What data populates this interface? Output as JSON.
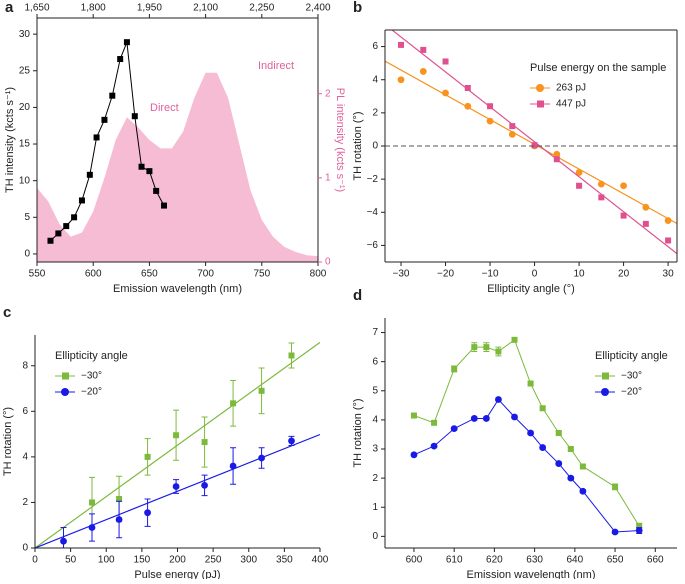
{
  "chart_data": [
    {
      "type": "line",
      "label": "a",
      "xlabel": "Emission wavelength (nm)",
      "x2label": "Excitation wavelength (nm)",
      "ylabel": "TH intensity (kcts s⁻¹)",
      "y2label": "PL intensity (kcts s⁻¹)",
      "xlim": [
        550,
        800
      ],
      "xticks": [
        550,
        600,
        650,
        700,
        750,
        800
      ],
      "x2lim": [
        1650,
        2400
      ],
      "x2ticks": [
        {
          "value": 1650,
          "label": "1,650"
        },
        {
          "value": 1800,
          "label": "1,800"
        },
        {
          "value": 1950,
          "label": "1,950"
        },
        {
          "value": 2100,
          "label": "2,100"
        },
        {
          "value": 2250,
          "label": "2,250"
        },
        {
          "value": 2400,
          "label": "2,400"
        }
      ],
      "ylim": [
        -1.1,
        32.2
      ],
      "yticks": [
        0,
        5,
        10,
        15,
        20,
        25,
        30
      ],
      "y2lim": [
        0,
        2.9
      ],
      "y2ticks": [
        0,
        1,
        2
      ],
      "annotations": [
        "Direct",
        "Indirect"
      ],
      "series": [
        {
          "color": "#f6bcd3",
          "axis": "y2",
          "fill": true,
          "x": [
            550,
            560,
            570,
            580,
            590,
            600,
            610,
            620,
            630,
            640,
            650,
            660,
            670,
            680,
            690,
            700,
            710,
            720,
            730,
            740,
            750,
            760,
            770,
            780,
            790,
            800
          ],
          "values": [
            0.88,
            0.72,
            0.45,
            0.3,
            0.35,
            0.6,
            1.0,
            1.45,
            1.72,
            1.6,
            1.45,
            1.35,
            1.35,
            1.55,
            1.95,
            2.25,
            2.25,
            1.95,
            1.4,
            0.85,
            0.5,
            0.3,
            0.18,
            0.12,
            0.08,
            0.07
          ]
        },
        {
          "color": "#000000",
          "marker": "square",
          "connect": true,
          "x": [
            562,
            569,
            576,
            583,
            590,
            597,
            603,
            610,
            617,
            624,
            630,
            637,
            643,
            650,
            656,
            663
          ],
          "values": [
            1.8,
            2.8,
            3.8,
            5.0,
            7.3,
            10.8,
            15.9,
            18.3,
            21.6,
            26.6,
            28.9,
            18.8,
            11.9,
            11.3,
            8.6,
            6.6
          ]
        }
      ]
    },
    {
      "type": "scatter",
      "label": "b",
      "xlabel": "Ellipticity angle (°)",
      "ylabel": "TH rotation (°)",
      "legend_title": "Pulse energy on the sample",
      "xlim": [
        -33.6,
        32
      ],
      "xticks": [
        {
          "value": -30,
          "label": "−30"
        },
        {
          "value": -20,
          "label": "−20"
        },
        {
          "value": -10,
          "label": "−10"
        },
        0,
        10,
        20,
        30
      ],
      "ylim": [
        -7,
        7
      ],
      "yticks": [
        {
          "value": -6,
          "label": "−6"
        },
        {
          "value": -4,
          "label": "−4"
        },
        {
          "value": -2,
          "label": "−2"
        },
        0,
        2,
        4,
        6
      ],
      "series": [
        {
          "name": "263 pJ",
          "color": "#f7931e",
          "marker": "circle",
          "fit": "linear",
          "x": [
            -30,
            -25,
            -20,
            -15,
            -10,
            -5,
            0,
            5,
            10,
            15,
            20,
            25,
            30
          ],
          "values": [
            4.0,
            4.5,
            3.2,
            2.4,
            1.5,
            0.7,
            0.0,
            -0.5,
            -1.6,
            -2.3,
            -2.4,
            -3.7,
            -4.5
          ]
        },
        {
          "name": "447 pJ",
          "color": "#e0508e",
          "marker": "square",
          "fit": "linear",
          "x": [
            -30,
            -25,
            -20,
            -15,
            -10,
            -5,
            0,
            5,
            10,
            15,
            20,
            25,
            30
          ],
          "values": [
            6.1,
            5.8,
            5.1,
            3.5,
            2.4,
            1.2,
            0.05,
            -0.8,
            -2.4,
            -3.1,
            -4.2,
            -4.7,
            -5.7
          ]
        }
      ]
    },
    {
      "type": "scatter",
      "label": "c",
      "xlabel": "Pulse energy (pJ)",
      "ylabel": "TH rotation (°)",
      "legend_title": "Ellipticity angle",
      "xlim": [
        0,
        400
      ],
      "xticks": [
        0,
        50,
        100,
        150,
        200,
        250,
        300,
        350,
        400
      ],
      "ylim": [
        0,
        9.35
      ],
      "yticks": [
        0,
        2,
        4,
        6,
        8
      ],
      "series": [
        {
          "name": "−30°",
          "color": "#7dba3c",
          "marker": "square",
          "fit": "origin",
          "x": [
            80,
            118,
            158,
            198,
            238,
            278,
            318,
            360
          ],
          "values": [
            2.0,
            2.15,
            4.0,
            4.95,
            4.65,
            6.35,
            6.9,
            8.45
          ],
          "errors": [
            1.1,
            1.0,
            0.8,
            1.1,
            1.1,
            1.0,
            1.0,
            0.55
          ]
        },
        {
          "name": "−20°",
          "color": "#1a1ae6",
          "marker": "circle",
          "fit": "origin",
          "x": [
            40,
            80,
            118,
            158,
            198,
            238,
            278,
            318,
            360
          ],
          "values": [
            0.3,
            0.9,
            1.25,
            1.55,
            2.7,
            2.75,
            3.6,
            3.95,
            4.7
          ],
          "errors": [
            0.6,
            0.6,
            0.8,
            0.6,
            0.3,
            0.45,
            0.8,
            0.45,
            0.2
          ]
        }
      ]
    },
    {
      "type": "line",
      "label": "d",
      "xlabel": "Emission wavelength (nm)",
      "ylabel": "TH rotation (°)",
      "legend_title": "Ellipticity angle",
      "xlim": [
        592.8,
        665.4
      ],
      "xticks": [
        600,
        610,
        620,
        630,
        640,
        650,
        660
      ],
      "ylim": [
        -0.4,
        7.5
      ],
      "yticks": [
        0,
        1,
        2,
        3,
        4,
        5,
        6,
        7
      ],
      "series": [
        {
          "name": "−30°",
          "color": "#7dba3c",
          "marker": "square",
          "connect": true,
          "x": [
            600,
            605,
            610,
            615,
            618,
            621,
            625,
            629,
            632,
            636,
            639,
            642,
            650,
            656
          ],
          "values": [
            4.15,
            3.9,
            5.75,
            6.5,
            6.5,
            6.35,
            6.75,
            5.25,
            4.4,
            3.55,
            3.0,
            2.4,
            1.7,
            0.35
          ],
          "errors": [
            0.05,
            0.05,
            0.1,
            0.15,
            0.15,
            0.15,
            0.05,
            0.05,
            0.05,
            0.05,
            0.05,
            0.05,
            0.1,
            0.1
          ]
        },
        {
          "name": "−20°",
          "color": "#1a1ae6",
          "marker": "circle",
          "connect": true,
          "x": [
            600,
            605,
            610,
            615,
            618,
            621,
            625,
            629,
            632,
            636,
            639,
            642,
            650,
            656
          ],
          "values": [
            2.8,
            3.1,
            3.7,
            4.05,
            4.05,
            4.7,
            4.1,
            3.55,
            3.05,
            2.5,
            2.0,
            1.55,
            0.15,
            0.2
          ],
          "errors": [
            0.05,
            0.05,
            0.05,
            0.05,
            0.05,
            0.05,
            0.05,
            0.05,
            0.05,
            0.05,
            0.05,
            0.05,
            0.05,
            0.1
          ]
        }
      ]
    }
  ]
}
